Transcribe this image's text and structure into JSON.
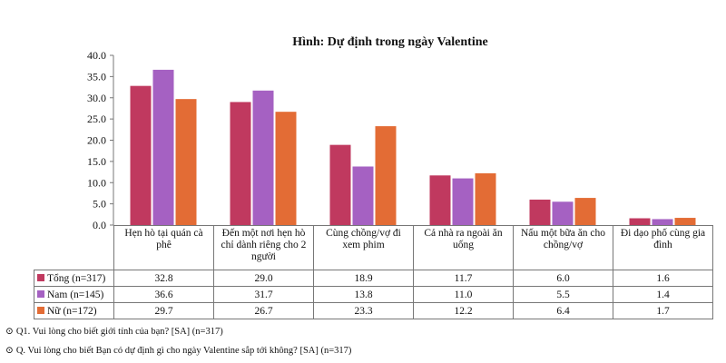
{
  "chart_data": {
    "type": "bar",
    "title": "Hình: Dự định trong ngày Valentine",
    "categories": [
      "Hẹn hò tại quán cà phê",
      "Đến một nơi hẹn hò chỉ dành riêng cho 2 người",
      "Cùng chồng/vợ đi xem phim",
      "Cả nhà ra ngoài ăn uống",
      "Nấu một bữa ăn cho chồng/vợ",
      "Đi dạo phố cùng gia đình"
    ],
    "series": [
      {
        "name": "Tổng (n=317)",
        "color": "#c0395f",
        "values": [
          32.8,
          29.0,
          18.9,
          11.7,
          6.0,
          1.6
        ]
      },
      {
        "name": "Nam (n=145)",
        "color": "#a561c2",
        "values": [
          36.6,
          31.7,
          13.8,
          11.0,
          5.5,
          1.4
        ]
      },
      {
        "name": "Nữ (n=172)",
        "color": "#e36c35",
        "values": [
          29.7,
          26.7,
          23.3,
          12.2,
          6.4,
          1.7
        ]
      }
    ],
    "ylim": [
      0,
      40
    ],
    "yticks": [
      "0.0",
      "5.0",
      "10.0",
      "15.0",
      "20.0",
      "25.0",
      "30.0",
      "35.0",
      "40.0"
    ],
    "grid": false,
    "legend": "data-table"
  },
  "table_values": [
    [
      "32.8",
      "29.0",
      "18.9",
      "11.7",
      "6.0",
      "1.6"
    ],
    [
      "36.6",
      "31.7",
      "13.8",
      "11.0",
      "5.5",
      "1.4"
    ],
    [
      "29.7",
      "26.7",
      "23.3",
      "12.2",
      "6.4",
      "1.7"
    ]
  ],
  "notes": {
    "q1": "Q1. Vui lòng cho biết giới tính của bạn? [SA] (n=317)",
    "q2": "Q. Vui lòng cho biết Bạn có dự định gì cho ngày Valentine sắp tới không? [SA] (n=317)",
    "bullet_icon": "circled-dot-icon"
  }
}
